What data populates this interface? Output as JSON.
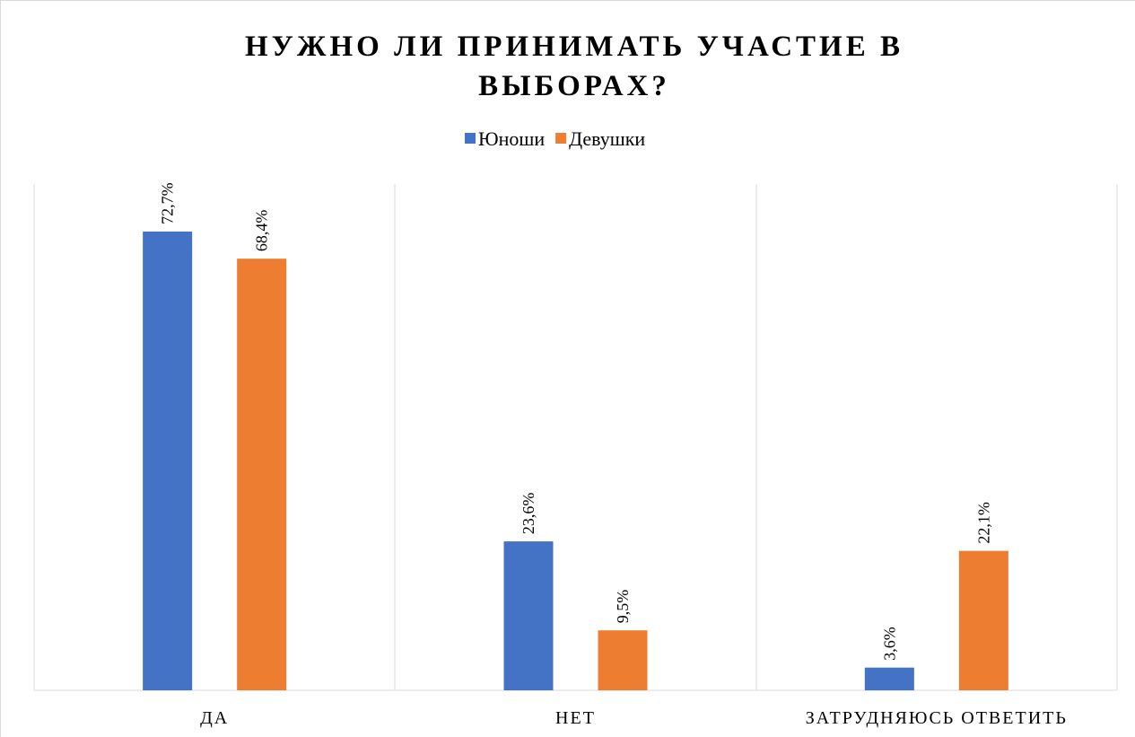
{
  "chart_data": {
    "type": "bar",
    "title": "НУЖНО ЛИ ПРИНИМАТЬ УЧАСТИЕ В ВЫБОРАХ?",
    "categories": [
      "ДА",
      "НЕТ",
      "ЗАТРУДНЯЮСЬ ОТВЕТИТЬ"
    ],
    "series": [
      {
        "name": "Юноши",
        "color": "#4472c4",
        "values": [
          72.7,
          23.6,
          3.6
        ],
        "value_labels": [
          "72,7%",
          "23,6%",
          "3,6%"
        ]
      },
      {
        "name": "Девушки",
        "color": "#ed7d31",
        "values": [
          68.4,
          9.5,
          22.1
        ],
        "value_labels": [
          "68,4%",
          "9,5%",
          "22,1%"
        ]
      }
    ],
    "legend": "top",
    "grid": false
  }
}
